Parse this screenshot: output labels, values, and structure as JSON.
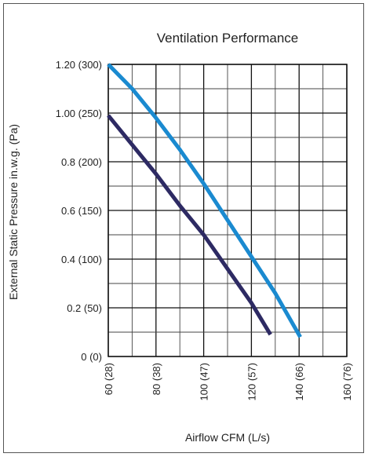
{
  "chart_data": {
    "type": "line",
    "title": "Ventilation Performance",
    "xlabel": "Airflow CFM (L/s)",
    "ylabel": "External Static Pressure in.w.g. (Pa)",
    "xlim": [
      60,
      160
    ],
    "ylim": [
      0,
      1.2
    ],
    "x_ticks": [
      {
        "value": 60,
        "label": "60 (28)"
      },
      {
        "value": 80,
        "label": "80 (38)"
      },
      {
        "value": 100,
        "label": "100 (47)"
      },
      {
        "value": 120,
        "label": "120 (57)"
      },
      {
        "value": 140,
        "label": "140 (66)"
      },
      {
        "value": 160,
        "label": "160 (76)"
      }
    ],
    "y_ticks": [
      {
        "value": 0,
        "label": "0 (0)"
      },
      {
        "value": 0.2,
        "label": "0.2 (50)"
      },
      {
        "value": 0.4,
        "label": "0.4 (100)"
      },
      {
        "value": 0.6,
        "label": "0.6 (150)"
      },
      {
        "value": 0.8,
        "label": "0.8 (200)"
      },
      {
        "value": 1.0,
        "label": "1.00 (250)"
      },
      {
        "value": 1.2,
        "label": "1.20 (300)"
      }
    ],
    "grid": true,
    "series": [
      {
        "color": "#2d2a63",
        "x": [
          60,
          70,
          80,
          90,
          100,
          110,
          120,
          128
        ],
        "y": [
          0.99,
          0.87,
          0.75,
          0.62,
          0.5,
          0.36,
          0.22,
          0.09
        ]
      },
      {
        "color": "#1a8ad0",
        "x": [
          60,
          70,
          80,
          90,
          100,
          110,
          120,
          130,
          140.5
        ],
        "y": [
          1.2,
          1.1,
          0.98,
          0.85,
          0.71,
          0.56,
          0.41,
          0.26,
          0.08
        ]
      }
    ]
  }
}
